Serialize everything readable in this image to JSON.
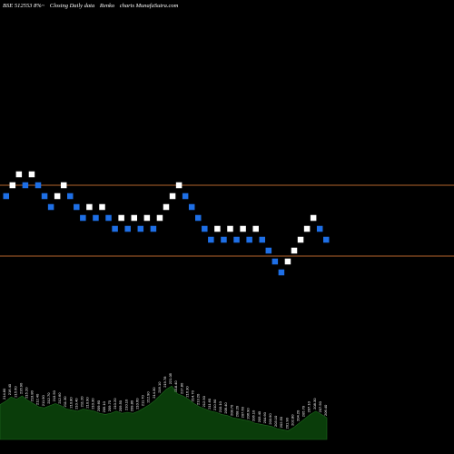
{
  "header": {
    "symbol": "BSE 512553 8%~",
    "subtitle": "Closing Daily data",
    "chart_kind": "Renko",
    "site": "charts MunafaSutra.com"
  },
  "colors": {
    "background": "#000000",
    "up_brick": "#ffffff",
    "down_brick": "#1e6fe6",
    "reference_line": "#b4642d",
    "volume_fill": "#0a3d0a",
    "volume_label": "#ffffff"
  },
  "chart_data": {
    "type": "renko",
    "reference_lines": [
      214.5,
      201.5
    ],
    "bricks": [
      {
        "dir": "down",
        "price": 212.5
      },
      {
        "dir": "up",
        "price": 214.5
      },
      {
        "dir": "up",
        "price": 216.5
      },
      {
        "dir": "down",
        "price": 214.5
      },
      {
        "dir": "up",
        "price": 216.5
      },
      {
        "dir": "down",
        "price": 214.5
      },
      {
        "dir": "down",
        "price": 212.5
      },
      {
        "dir": "down",
        "price": 210.5
      },
      {
        "dir": "up",
        "price": 212.5
      },
      {
        "dir": "up",
        "price": 214.5
      },
      {
        "dir": "down",
        "price": 212.5
      },
      {
        "dir": "down",
        "price": 210.5
      },
      {
        "dir": "down",
        "price": 208.5
      },
      {
        "dir": "up",
        "price": 210.5
      },
      {
        "dir": "down",
        "price": 208.5
      },
      {
        "dir": "up",
        "price": 210.5
      },
      {
        "dir": "down",
        "price": 208.5
      },
      {
        "dir": "down",
        "price": 206.5
      },
      {
        "dir": "up",
        "price": 208.5
      },
      {
        "dir": "down",
        "price": 206.5
      },
      {
        "dir": "up",
        "price": 208.5
      },
      {
        "dir": "down",
        "price": 206.5
      },
      {
        "dir": "up",
        "price": 208.5
      },
      {
        "dir": "down",
        "price": 206.5
      },
      {
        "dir": "up",
        "price": 208.5
      },
      {
        "dir": "up",
        "price": 210.5
      },
      {
        "dir": "up",
        "price": 212.5
      },
      {
        "dir": "up",
        "price": 214.5
      },
      {
        "dir": "down",
        "price": 212.5
      },
      {
        "dir": "down",
        "price": 210.5
      },
      {
        "dir": "down",
        "price": 208.5
      },
      {
        "dir": "down",
        "price": 206.5
      },
      {
        "dir": "down",
        "price": 204.5
      },
      {
        "dir": "up",
        "price": 206.5
      },
      {
        "dir": "down",
        "price": 204.5
      },
      {
        "dir": "up",
        "price": 206.5
      },
      {
        "dir": "down",
        "price": 204.5
      },
      {
        "dir": "up",
        "price": 206.5
      },
      {
        "dir": "down",
        "price": 204.5
      },
      {
        "dir": "up",
        "price": 206.5
      },
      {
        "dir": "down",
        "price": 204.5
      },
      {
        "dir": "down",
        "price": 202.5
      },
      {
        "dir": "down",
        "price": 200.5
      },
      {
        "dir": "down",
        "price": 198.5
      },
      {
        "dir": "up",
        "price": 200.5
      },
      {
        "dir": "up",
        "price": 202.5
      },
      {
        "dir": "up",
        "price": 204.5
      },
      {
        "dir": "up",
        "price": 206.5
      },
      {
        "dir": "up",
        "price": 208.5
      },
      {
        "dir": "down",
        "price": 206.5
      },
      {
        "dir": "down",
        "price": 204.5
      }
    ],
    "volume_area": {
      "labels": [
        "213.10",
        "214.80",
        "216.40",
        "215.60",
        "216.90",
        "215.20",
        "213.80",
        "212.40",
        "211.90",
        "212.70",
        "213.50",
        "212.60",
        "211.30",
        "210.80",
        "210.40",
        "211.20",
        "210.90",
        "210.30",
        "209.60",
        "209.10",
        "209.70",
        "210.20",
        "209.50",
        "210.10",
        "209.80",
        "210.60",
        "211.70",
        "212.90",
        "214.30",
        "216.10",
        "219.78",
        "221.05",
        "218.40",
        "217.80",
        "216.30",
        "214.70",
        "213.20",
        "212.50",
        "211.60",
        "210.90",
        "210.10",
        "209.40",
        "208.70",
        "208.20",
        "207.60",
        "206.90",
        "206.10",
        "205.40",
        "204.60",
        "203.90",
        "203.10",
        "202.50",
        "201.90",
        "202.80",
        "204.20",
        "205.70",
        "207.10",
        "208.30",
        "207.50",
        "206.40"
      ],
      "values": [
        3.2,
        3.5,
        3.9,
        3.7,
        4.0,
        3.6,
        3.3,
        3.0,
        2.9,
        3.1,
        3.3,
        3.1,
        2.8,
        2.7,
        2.6,
        2.8,
        2.7,
        2.6,
        2.4,
        2.3,
        2.4,
        2.6,
        2.4,
        2.5,
        2.4,
        2.6,
        2.9,
        3.2,
        3.6,
        4.1,
        4.6,
        4.9,
        4.2,
        4.0,
        3.7,
        3.3,
        3.0,
        2.8,
        2.6,
        2.5,
        2.3,
        2.2,
        2.0,
        1.9,
        1.8,
        1.7,
        1.5,
        1.4,
        1.3,
        1.2,
        1.0,
        0.9,
        0.8,
        1.1,
        1.5,
        1.9,
        2.3,
        2.6,
        2.3,
        2.0
      ]
    }
  }
}
